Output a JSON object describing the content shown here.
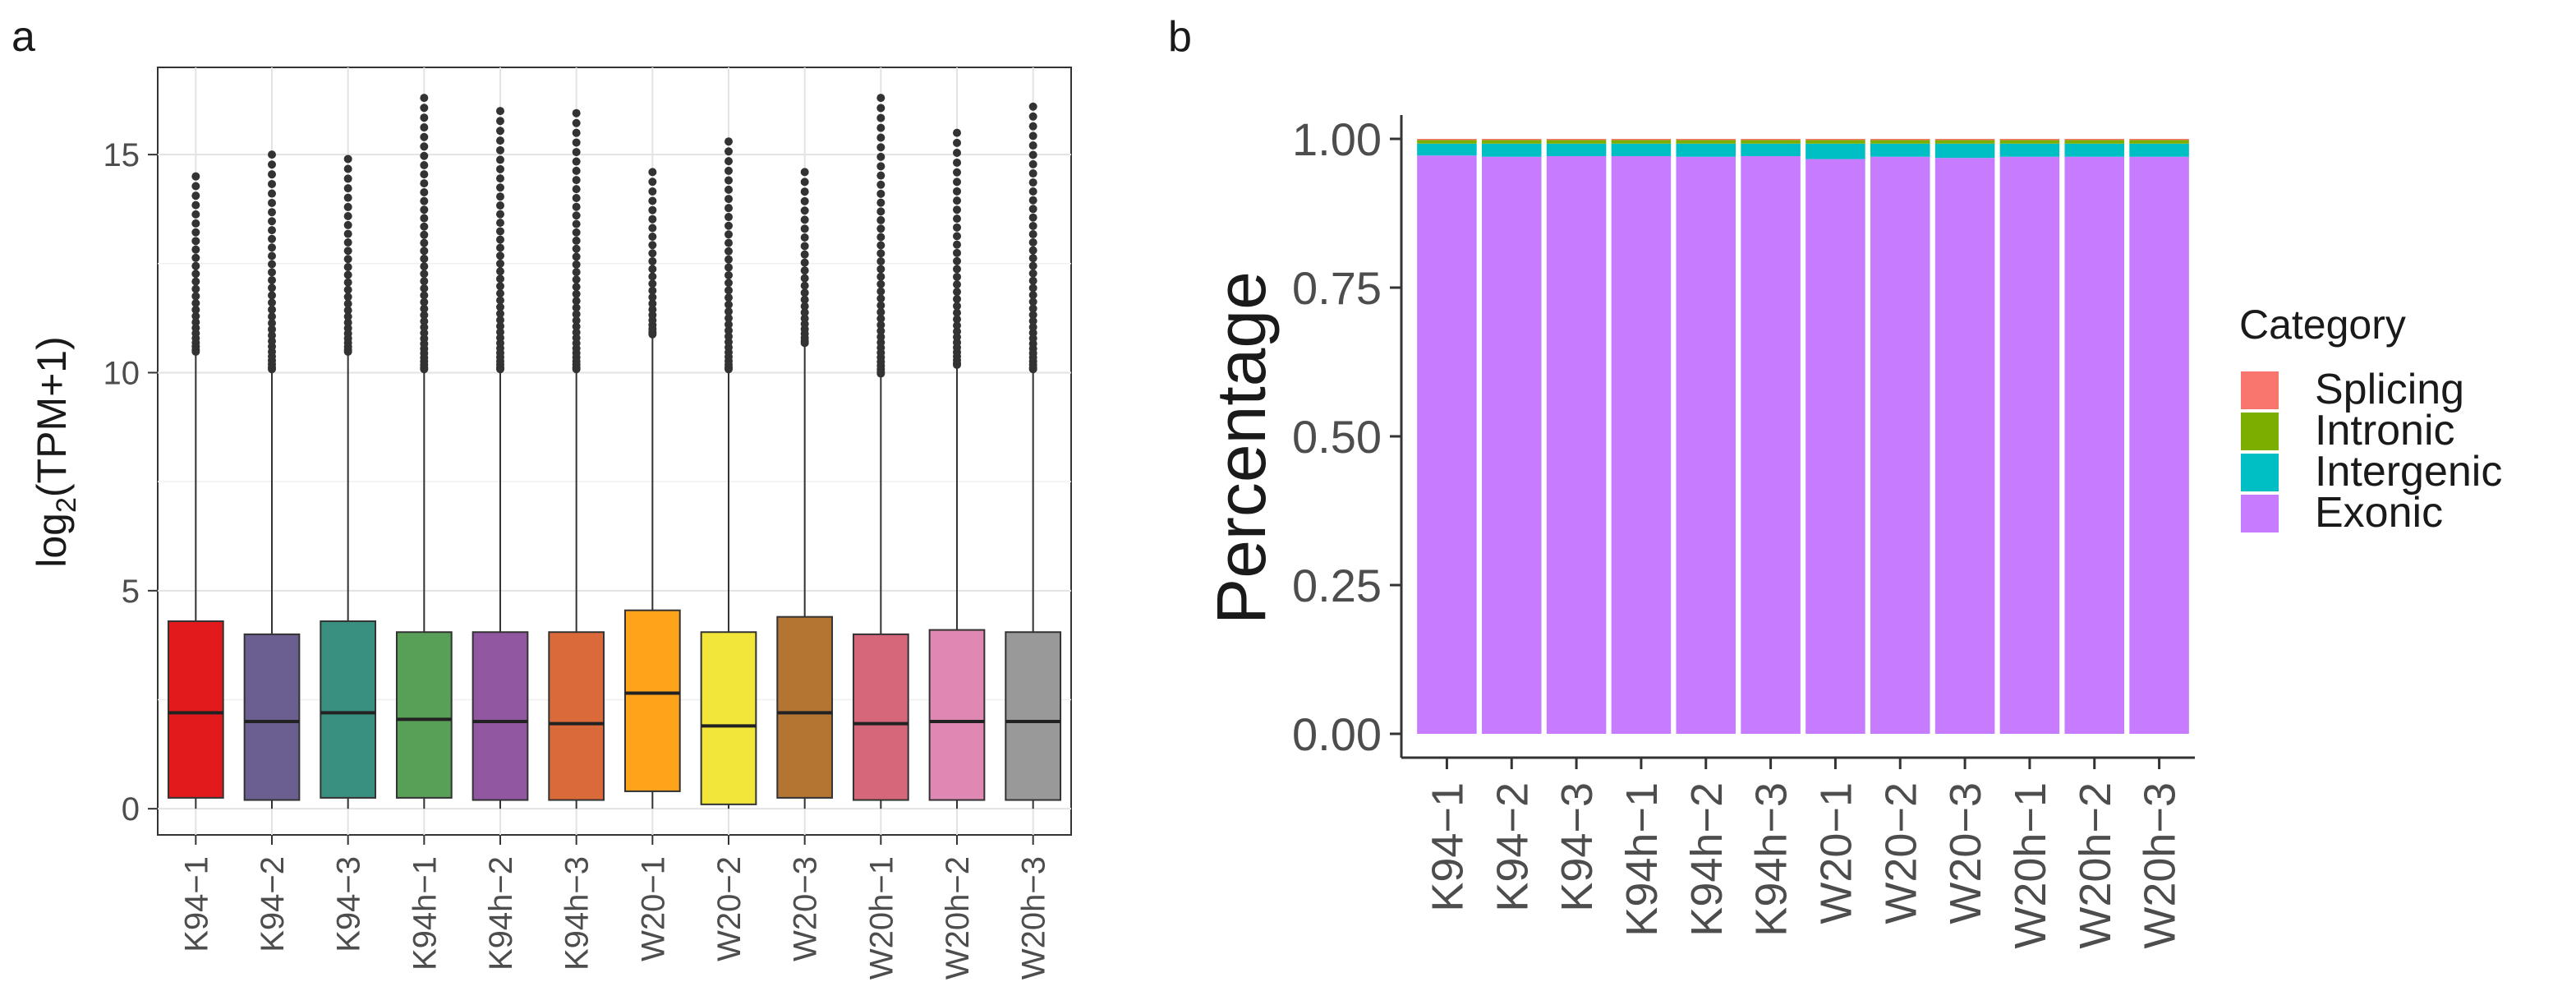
{
  "chart_data": [
    {
      "panel_label": "a",
      "type": "box",
      "ylabel_main": "log",
      "ylabel_sub": "2",
      "ylabel_rest": "(TPM+1)",
      "ylim": [
        -0.6,
        17.0
      ],
      "yticks": [
        0,
        5,
        10,
        15
      ],
      "ytick_labels": [
        "0",
        "5",
        "10",
        "15"
      ],
      "grid": true,
      "categories": [
        "K94−1",
        "K94−2",
        "K94−3",
        "K94h−1",
        "K94h−2",
        "K94h−3",
        "W20−1",
        "W20−2",
        "W20−3",
        "W20h−1",
        "W20h−2",
        "W20h−3"
      ],
      "colors": [
        "#e31a1c",
        "#6a5f8e",
        "#3a9080",
        "#58a058",
        "#9157a0",
        "#db6a3b",
        "#ffa31a",
        "#f2e63a",
        "#b47432",
        "#d6677a",
        "#df88b4",
        "#999999"
      ],
      "boxes": [
        {
          "q1": 0.25,
          "median": 2.2,
          "q3": 4.3,
          "whisker_low": 0.0,
          "whisker_high": 10.4,
          "max": 14.5
        },
        {
          "q1": 0.2,
          "median": 2.0,
          "q3": 4.0,
          "whisker_low": 0.0,
          "whisker_high": 10.0,
          "max": 15.0
        },
        {
          "q1": 0.25,
          "median": 2.2,
          "q3": 4.3,
          "whisker_low": 0.0,
          "whisker_high": 10.4,
          "max": 14.9
        },
        {
          "q1": 0.25,
          "median": 2.05,
          "q3": 4.05,
          "whisker_low": 0.0,
          "whisker_high": 10.0,
          "max": 16.3
        },
        {
          "q1": 0.2,
          "median": 2.0,
          "q3": 4.05,
          "whisker_low": 0.0,
          "whisker_high": 10.0,
          "max": 16.0
        },
        {
          "q1": 0.2,
          "median": 1.95,
          "q3": 4.05,
          "whisker_low": 0.0,
          "whisker_high": 10.0,
          "max": 15.95
        },
        {
          "q1": 0.4,
          "median": 2.65,
          "q3": 4.55,
          "whisker_low": 0.0,
          "whisker_high": 10.8,
          "max": 14.6
        },
        {
          "q1": 0.1,
          "median": 1.9,
          "q3": 4.05,
          "whisker_low": 0.0,
          "whisker_high": 10.0,
          "max": 15.3
        },
        {
          "q1": 0.25,
          "median": 2.2,
          "q3": 4.4,
          "whisker_low": 0.0,
          "whisker_high": 10.6,
          "max": 14.6
        },
        {
          "q1": 0.2,
          "median": 1.95,
          "q3": 4.0,
          "whisker_low": 0.0,
          "whisker_high": 9.9,
          "max": 16.3
        },
        {
          "q1": 0.2,
          "median": 2.0,
          "q3": 4.1,
          "whisker_low": 0.0,
          "whisker_high": 10.1,
          "max": 15.5
        },
        {
          "q1": 0.2,
          "median": 2.0,
          "q3": 4.05,
          "whisker_low": 0.0,
          "whisker_high": 10.0,
          "max": 16.1
        }
      ]
    },
    {
      "panel_label": "b",
      "type": "stacked_bar",
      "ylabel": "Percentage",
      "ylim": [
        0,
        1.02
      ],
      "yticks": [
        0,
        0.25,
        0.5,
        0.75,
        1.0
      ],
      "ytick_labels": [
        "0.00",
        "0.25",
        "0.50",
        "0.75",
        "1.00"
      ],
      "grid": false,
      "categories": [
        "K94−1",
        "K94−2",
        "K94−3",
        "K94h−1",
        "K94h−2",
        "K94h−3",
        "W20−1",
        "W20−2",
        "W20−3",
        "W20h−1",
        "W20h−2",
        "W20h−3"
      ],
      "series": [
        {
          "name": "Exonic",
          "color": "#c77cff",
          "values": [
            0.972,
            0.97,
            0.971,
            0.971,
            0.97,
            0.971,
            0.966,
            0.97,
            0.968,
            0.97,
            0.97,
            0.97
          ]
        },
        {
          "name": "Intergenic",
          "color": "#00bfc4",
          "values": [
            0.02,
            0.022,
            0.021,
            0.021,
            0.022,
            0.021,
            0.026,
            0.022,
            0.024,
            0.022,
            0.022,
            0.022
          ]
        },
        {
          "name": "Intronic",
          "color": "#7cae00",
          "values": [
            0.006,
            0.006,
            0.006,
            0.006,
            0.006,
            0.006,
            0.006,
            0.006,
            0.006,
            0.006,
            0.006,
            0.006
          ]
        },
        {
          "name": "Splicing",
          "color": "#f8766d",
          "values": [
            0.002,
            0.002,
            0.002,
            0.002,
            0.002,
            0.002,
            0.002,
            0.002,
            0.002,
            0.002,
            0.002,
            0.002
          ]
        }
      ],
      "legend": {
        "title": "Category",
        "placement": "right",
        "entries": [
          {
            "name": "Splicing",
            "color": "#f8766d"
          },
          {
            "name": "Intronic",
            "color": "#7cae00"
          },
          {
            "name": "Intergenic",
            "color": "#00bfc4"
          },
          {
            "name": "Exonic",
            "color": "#c77cff"
          }
        ]
      }
    }
  ]
}
